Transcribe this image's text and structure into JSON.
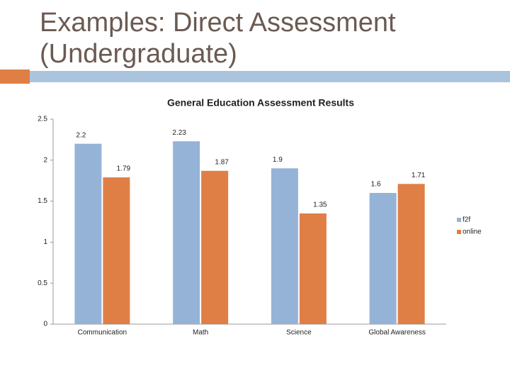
{
  "slide_title": "Examples: Direct Assessment (Undergraduate)",
  "chart_data": {
    "type": "bar",
    "title": "General Education Assessment Results",
    "categories": [
      "Communication",
      "Math",
      "Science",
      "Global Awareness"
    ],
    "series": [
      {
        "name": "f2f",
        "color": "#95b3d7",
        "values": [
          2.2,
          2.23,
          1.9,
          1.6
        ]
      },
      {
        "name": "online",
        "color": "#e07f45",
        "values": [
          1.79,
          1.87,
          1.35,
          1.71
        ]
      }
    ],
    "ylim": [
      0,
      2.5
    ],
    "yticks": [
      0,
      0.5,
      1,
      1.5,
      2,
      2.5
    ],
    "legend": "right"
  }
}
